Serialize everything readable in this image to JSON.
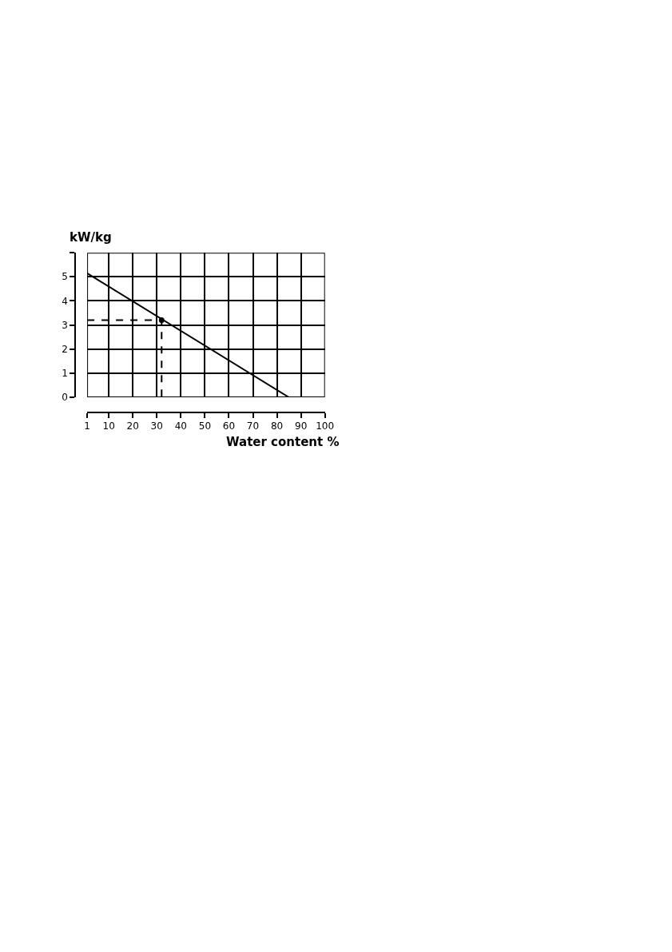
{
  "chart_data": {
    "type": "line",
    "xlabel": "Water content %",
    "ylabel": "kW/kg",
    "xlim": [
      1,
      100
    ],
    "ylim": [
      0,
      6
    ],
    "xticks": [
      1,
      10,
      20,
      30,
      40,
      50,
      60,
      70,
      80,
      90,
      100
    ],
    "yticks": [
      0,
      1,
      2,
      3,
      4,
      5,
      {
        "value": 6,
        "label": null
      }
    ],
    "grid": true,
    "legend": false,
    "series": [
      {
        "color": "#000000",
        "x": [
          1,
          85
        ],
        "values": [
          5.15,
          0
        ],
        "line_style": "solid"
      },
      {
        "type": "line",
        "color": "#000000",
        "x": [
          1,
          32,
          32
        ],
        "values": [
          3.2,
          3.2,
          0
        ],
        "line_style": "dashed"
      },
      {
        "type": "scatter",
        "color": "#000000",
        "x": [
          32
        ],
        "values": [
          3.2
        ],
        "marker": "circle"
      }
    ]
  }
}
